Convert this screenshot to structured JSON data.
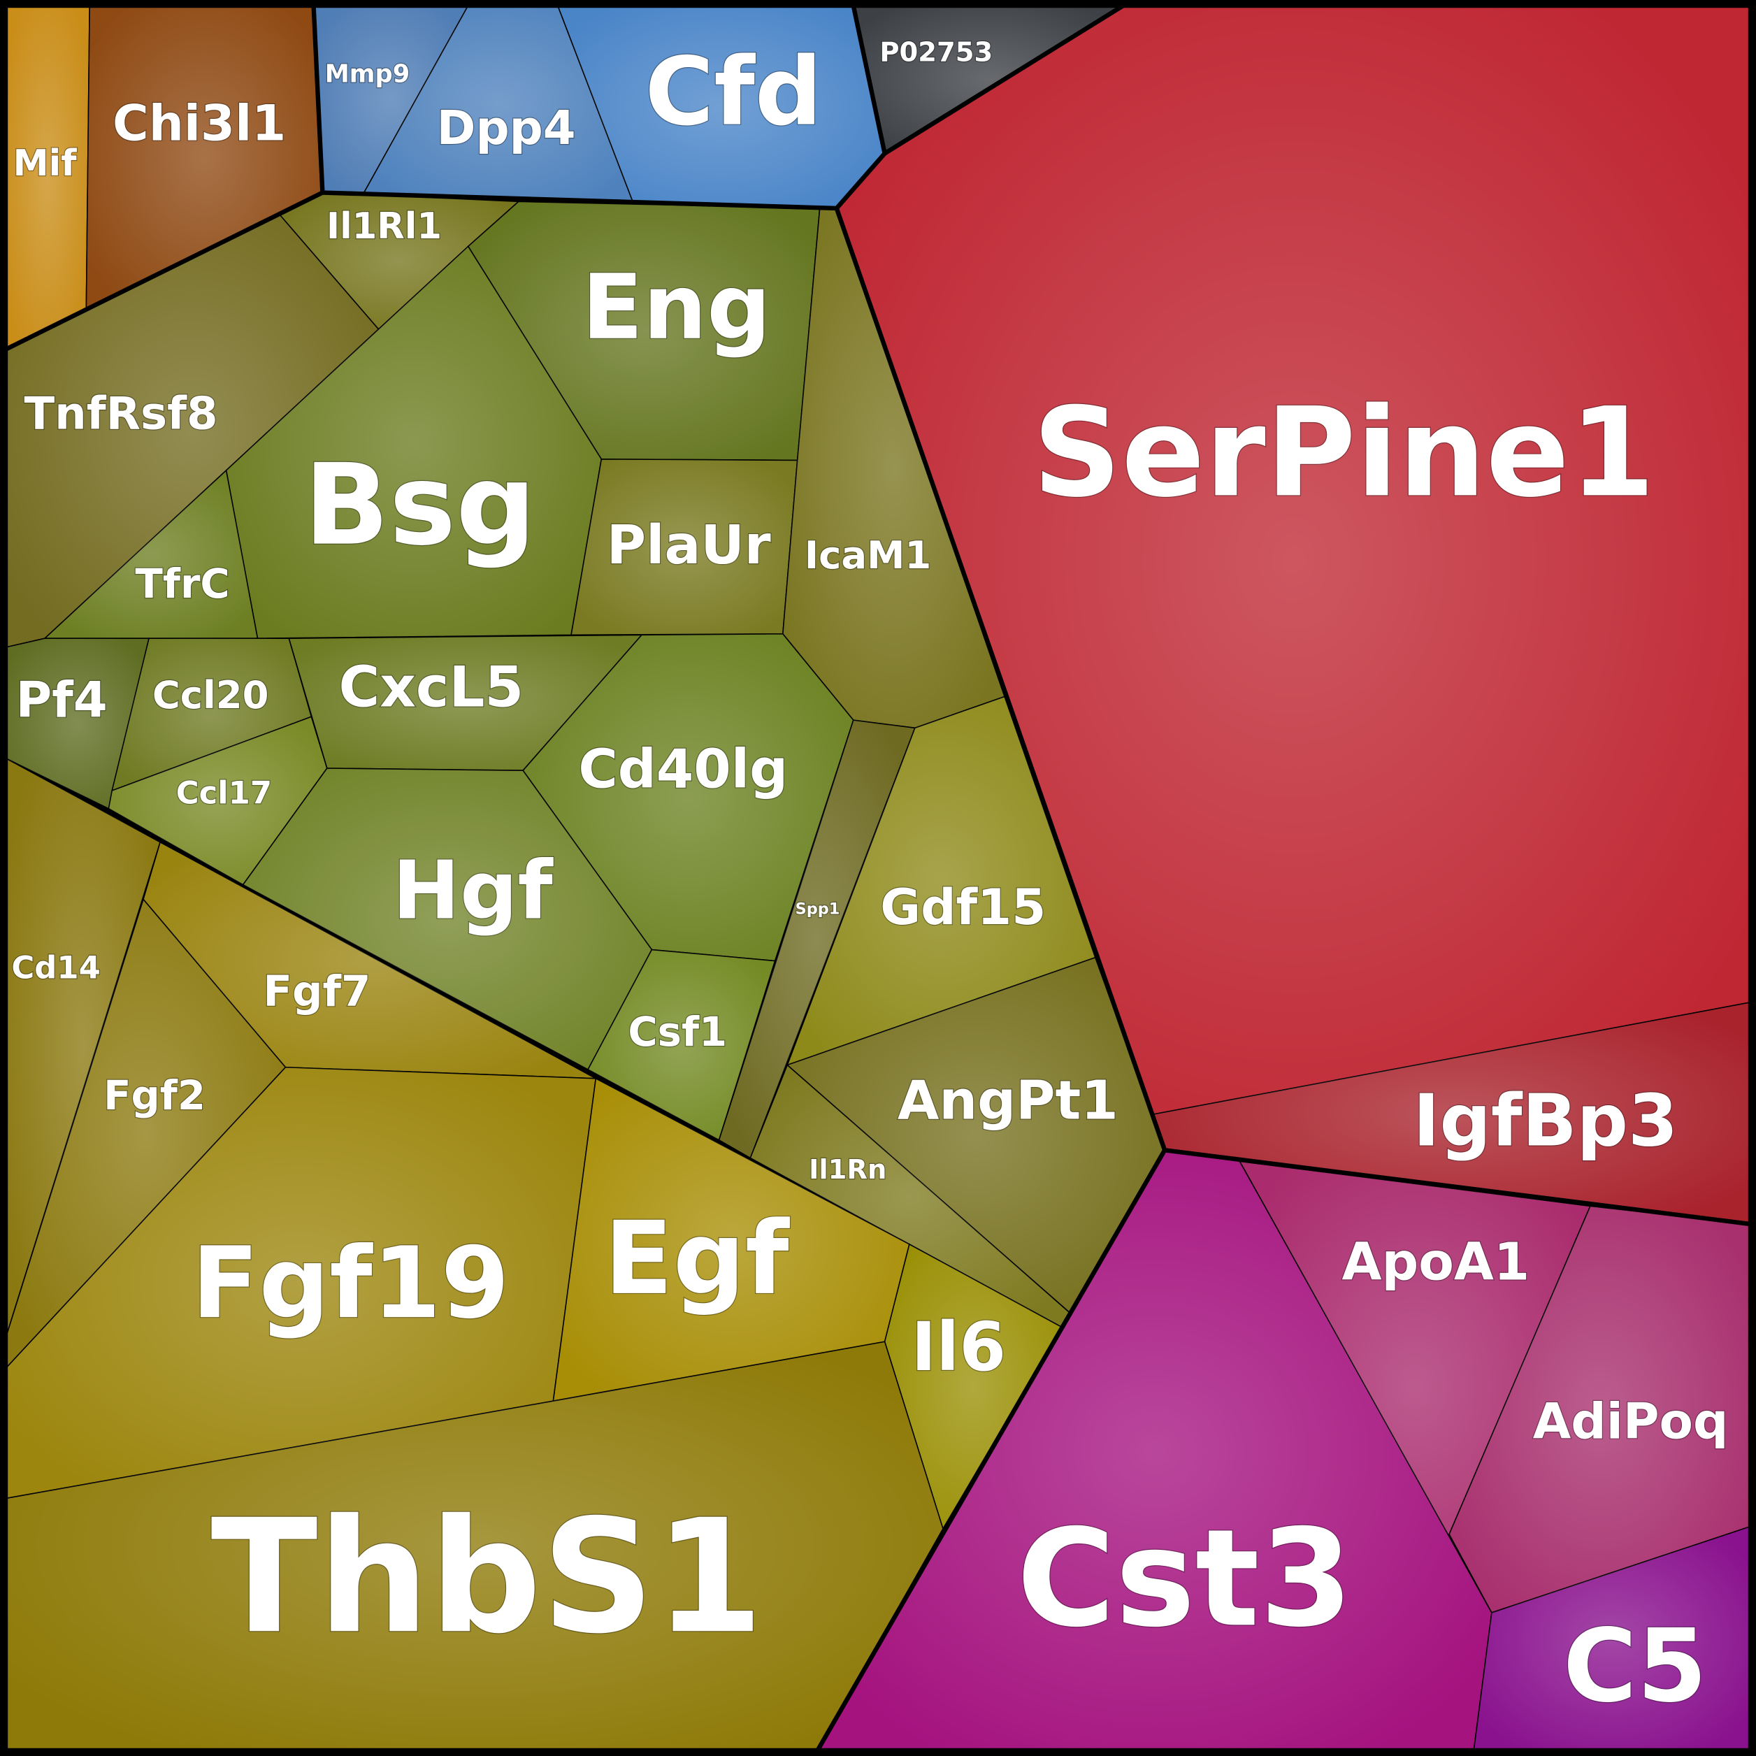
{
  "cells": [
    {
      "label": "Mif"
    },
    {
      "label": "Chi3l1"
    },
    {
      "label": "Mmp9"
    },
    {
      "label": "Dpp4"
    },
    {
      "label": "Cfd"
    },
    {
      "label": "P02753"
    },
    {
      "label": "SerPine1"
    },
    {
      "label": "IgfBp3"
    },
    {
      "label": "Il1Rl1"
    },
    {
      "label": "TnfRsf8"
    },
    {
      "label": "Eng"
    },
    {
      "label": "Bsg"
    },
    {
      "label": "PlaUr"
    },
    {
      "label": "IcaM1"
    },
    {
      "label": "TfrC"
    },
    {
      "label": "Pf4"
    },
    {
      "label": "Ccl20"
    },
    {
      "label": "Ccl17"
    },
    {
      "label": "CxcL5"
    },
    {
      "label": "Cd40lg"
    },
    {
      "label": "Hgf"
    },
    {
      "label": "Csf1"
    },
    {
      "label": "Spp1"
    },
    {
      "label": "Gdf15"
    },
    {
      "label": "AngPt1"
    },
    {
      "label": "Il1Rn"
    },
    {
      "label": "Cd14"
    },
    {
      "label": "Fgf2"
    },
    {
      "label": "Fgf7"
    },
    {
      "label": "Fgf19"
    },
    {
      "label": "Egf"
    },
    {
      "label": "Il6"
    },
    {
      "label": "ThbS1"
    },
    {
      "label": "Cst3"
    },
    {
      "label": "ApoA1"
    },
    {
      "label": "AdiPoq"
    },
    {
      "label": "C5"
    }
  ]
}
